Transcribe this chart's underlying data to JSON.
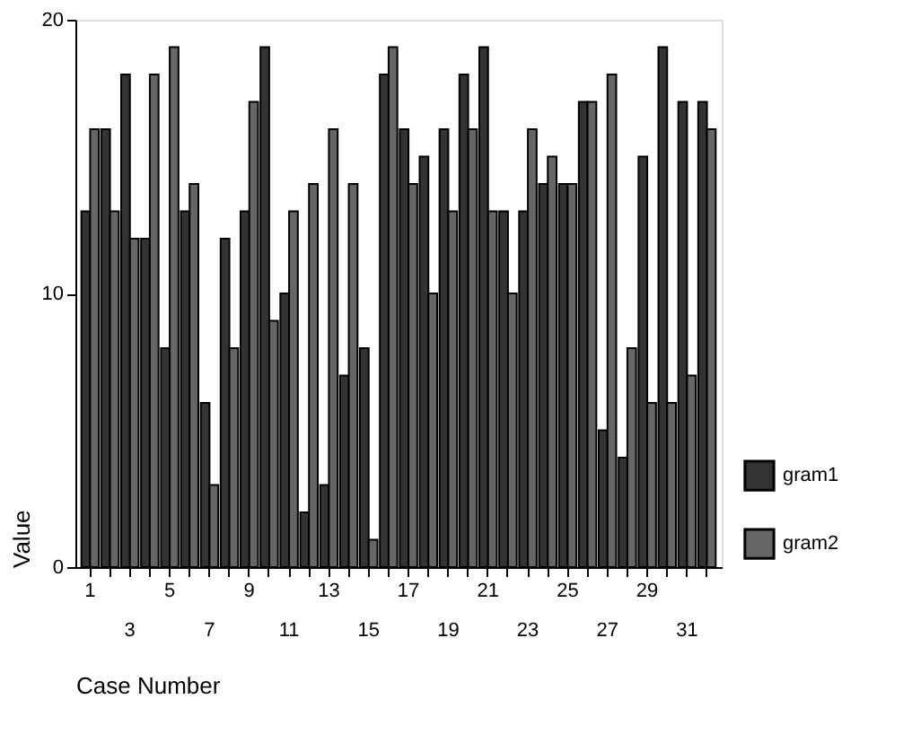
{
  "chart_data": {
    "type": "bar",
    "xlabel": "Case Number",
    "ylabel": "Value",
    "categories": [
      "1",
      null,
      "3",
      null,
      "5",
      null,
      "7",
      null,
      "9",
      null,
      "11",
      null,
      "13",
      null,
      "15",
      null,
      "17",
      null,
      "19",
      null,
      "21",
      null,
      "23",
      null,
      "25",
      null,
      "27",
      null,
      "29",
      null,
      "31",
      null
    ],
    "series": [
      {
        "name": "gram1",
        "color": "#333333",
        "values": [
          13,
          16,
          18,
          12,
          8,
          13,
          6,
          12,
          13,
          19,
          10,
          2,
          3,
          7,
          8,
          18,
          16,
          15,
          16,
          18,
          19,
          13,
          13,
          14,
          14,
          17,
          5,
          4,
          15,
          19,
          17,
          17
        ]
      },
      {
        "name": "gram2",
        "color": "#666666",
        "values": [
          16,
          13,
          12,
          18,
          19,
          14,
          3,
          8,
          17,
          9,
          13,
          14,
          16,
          14,
          1,
          19,
          14,
          10,
          13,
          16,
          13,
          10,
          16,
          15,
          14,
          17,
          18,
          8,
          6,
          6,
          7,
          16
        ]
      }
    ],
    "ylim": [
      0,
      20
    ],
    "yticks": [
      0,
      10,
      20
    ],
    "grid": false,
    "legend": "right"
  }
}
